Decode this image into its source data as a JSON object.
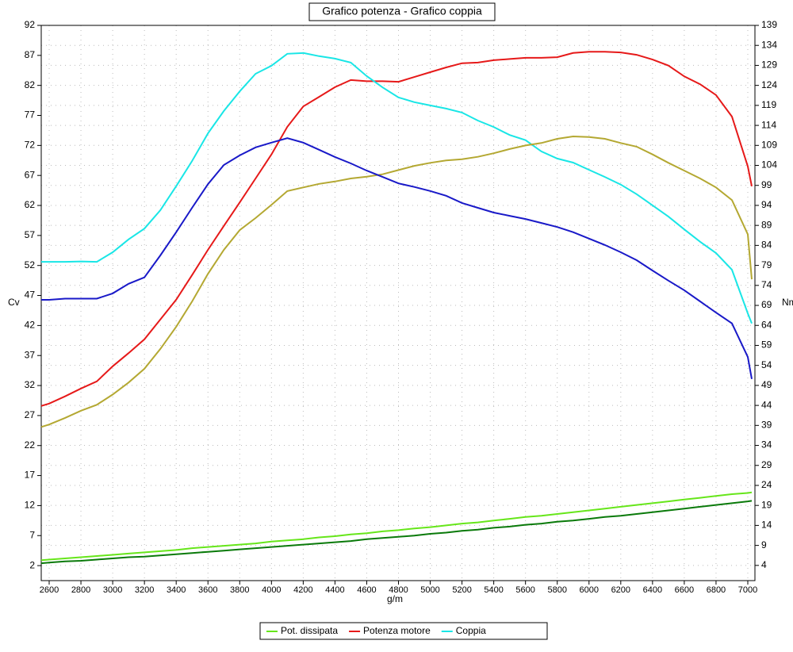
{
  "chart_data": {
    "type": "line",
    "title": "Grafico potenza - Grafico coppia",
    "x_label": "g/m",
    "y_label": "Cv",
    "y2_label": "Nm",
    "x": [
      2550,
      2600,
      2700,
      2800,
      2900,
      3000,
      3100,
      3200,
      3300,
      3400,
      3500,
      3600,
      3700,
      3800,
      3900,
      4000,
      4100,
      4200,
      4300,
      4400,
      4500,
      4600,
      4700,
      4800,
      4900,
      5000,
      5100,
      5200,
      5300,
      5400,
      5500,
      5600,
      5700,
      5800,
      5900,
      6000,
      6100,
      6200,
      6300,
      6400,
      6500,
      6600,
      6700,
      6800,
      6900,
      7000,
      7025
    ],
    "xlim": [
      2550,
      7045
    ],
    "xticks": [
      2600,
      2800,
      3000,
      3200,
      3400,
      3600,
      3800,
      4000,
      4200,
      4400,
      4600,
      4800,
      5000,
      5200,
      5400,
      5600,
      5800,
      6000,
      6200,
      6400,
      6600,
      6800,
      7000
    ],
    "ylim": [
      -0.5,
      92
    ],
    "yticks": [
      2,
      7,
      12,
      17,
      22,
      27,
      32,
      37,
      42,
      47,
      52,
      57,
      62,
      67,
      72,
      77,
      82,
      87,
      92
    ],
    "y2lim": [
      0.2,
      139
    ],
    "y2ticks": [
      4,
      9,
      14,
      19,
      24,
      29,
      34,
      39,
      44,
      49,
      54,
      59,
      64,
      69,
      74,
      79,
      84,
      89,
      94,
      99,
      104,
      109,
      114,
      119,
      124,
      129,
      134,
      139
    ],
    "grid": true,
    "series": [
      {
        "name": "Pot. dissipata",
        "color": "#66e61a",
        "axis": "y",
        "values": [
          2.9,
          3.0,
          3.2,
          3.4,
          3.6,
          3.8,
          4.0,
          4.2,
          4.4,
          4.6,
          4.9,
          5.1,
          5.3,
          5.5,
          5.7,
          6.0,
          6.2,
          6.4,
          6.7,
          6.9,
          7.2,
          7.4,
          7.7,
          7.9,
          8.2,
          8.4,
          8.7,
          9.0,
          9.2,
          9.5,
          9.8,
          10.1,
          10.3,
          10.6,
          10.9,
          11.2,
          11.5,
          11.8,
          12.1,
          12.4,
          12.7,
          13.0,
          13.3,
          13.6,
          13.9,
          14.1,
          14.2
        ]
      },
      {
        "name": "Potenza motore",
        "color": "#e61919",
        "axis": "y",
        "values": [
          28.6,
          29.0,
          30.2,
          31.5,
          32.7,
          35.2,
          37.4,
          39.7,
          43.0,
          46.3,
          50.4,
          54.6,
          58.6,
          62.5,
          66.5,
          70.5,
          75.1,
          78.5,
          80.1,
          81.7,
          82.9,
          82.7,
          82.7,
          82.6,
          83.4,
          84.2,
          85.0,
          85.7,
          85.8,
          86.2,
          86.4,
          86.6,
          86.6,
          86.7,
          87.4,
          87.6,
          87.6,
          87.5,
          87.1,
          86.3,
          85.3,
          83.5,
          82.2,
          80.4,
          76.8,
          68.5,
          65.2
        ]
      },
      {
        "name": "Coppia",
        "color": "#19e6e6",
        "axis": "y2",
        "values": [
          79.9,
          79.9,
          79.9,
          80.0,
          79.9,
          82.3,
          85.5,
          88.2,
          92.8,
          98.8,
          105.1,
          112.0,
          117.6,
          122.5,
          126.9,
          128.9,
          131.9,
          132.1,
          131.3,
          130.7,
          129.7,
          126.3,
          123.5,
          121.0,
          119.8,
          119.0,
          118.2,
          117.2,
          115.2,
          113.6,
          111.6,
          110.3,
          107.5,
          105.7,
          104.7,
          102.9,
          101.1,
          99.2,
          96.8,
          94.0,
          91.2,
          88.0,
          84.9,
          82.1,
          77.9,
          67.0,
          64.5
        ]
      },
      {
        "color": "#0a7a0a",
        "axis": "y",
        "values": [
          2.4,
          2.5,
          2.7,
          2.8,
          3.0,
          3.2,
          3.4,
          3.5,
          3.7,
          3.9,
          4.1,
          4.3,
          4.5,
          4.7,
          4.9,
          5.1,
          5.3,
          5.5,
          5.7,
          5.9,
          6.1,
          6.4,
          6.6,
          6.8,
          7.0,
          7.3,
          7.5,
          7.8,
          8.0,
          8.3,
          8.5,
          8.8,
          9.0,
          9.3,
          9.5,
          9.8,
          10.1,
          10.3,
          10.6,
          10.9,
          11.2,
          11.5,
          11.8,
          12.1,
          12.4,
          12.7,
          12.8
        ]
      },
      {
        "color": "#b4a832",
        "axis": "y",
        "values": [
          25.1,
          25.5,
          26.6,
          27.8,
          28.8,
          30.5,
          32.5,
          34.8,
          38.1,
          41.8,
          46.0,
          50.6,
          54.6,
          57.9,
          59.9,
          62.1,
          64.4,
          65.0,
          65.6,
          66.0,
          66.5,
          66.8,
          67.2,
          67.9,
          68.6,
          69.1,
          69.5,
          69.7,
          70.1,
          70.7,
          71.4,
          72.0,
          72.4,
          73.1,
          73.5,
          73.4,
          73.1,
          72.4,
          71.8,
          70.5,
          69.1,
          67.8,
          66.5,
          65.0,
          62.9,
          57.2,
          49.7
        ]
      },
      {
        "color": "#1919c8",
        "axis": "y2",
        "values": [
          70.4,
          70.4,
          70.7,
          70.7,
          70.7,
          72.0,
          74.4,
          76.0,
          81.5,
          87.3,
          93.4,
          99.3,
          104.1,
          106.5,
          108.5,
          109.7,
          110.8,
          109.7,
          107.9,
          106.1,
          104.5,
          102.7,
          101.1,
          99.5,
          98.6,
          97.6,
          96.4,
          94.6,
          93.4,
          92.2,
          91.4,
          90.6,
          89.6,
          88.6,
          87.3,
          85.7,
          84.1,
          82.3,
          80.3,
          77.7,
          75.2,
          72.8,
          70.0,
          67.2,
          64.5,
          56.1,
          50.6
        ]
      }
    ]
  }
}
